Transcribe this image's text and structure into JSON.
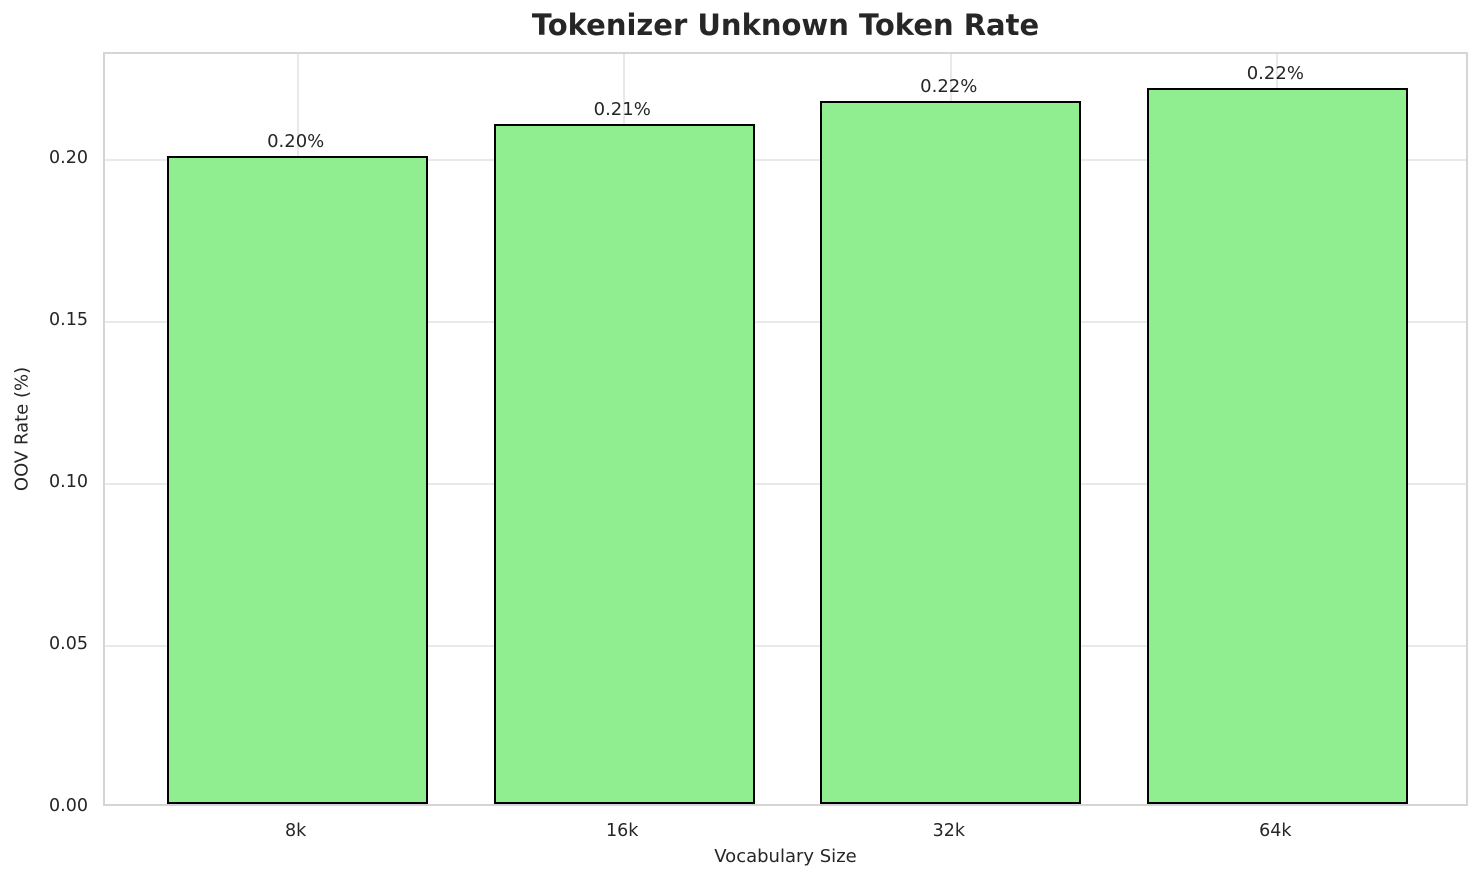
{
  "chart_data": {
    "type": "bar",
    "title": "Tokenizer Unknown Token Rate",
    "xlabel": "Vocabulary Size",
    "ylabel": "OOV Rate (%)",
    "categories": [
      "8k",
      "16k",
      "32k",
      "64k"
    ],
    "values": [
      0.2,
      0.21,
      0.217,
      0.221
    ],
    "bar_labels": [
      "0.20%",
      "0.21%",
      "0.22%",
      "0.22%"
    ],
    "ylim": [
      0,
      0.2327
    ],
    "yticks": [
      0,
      0.05,
      0.1,
      0.15,
      0.2
    ],
    "ytick_labels": [
      "0.00",
      "0.05",
      "0.10",
      "0.15",
      "0.20"
    ],
    "grid": true,
    "legend_position": "none",
    "bar_color": "#90EE90",
    "bar_edge_color": "#000000",
    "grid_color": "#e9e9e9",
    "spine_color": "#d5d5d5",
    "text_color": "#262626",
    "background_color": "#FFFFFF"
  }
}
